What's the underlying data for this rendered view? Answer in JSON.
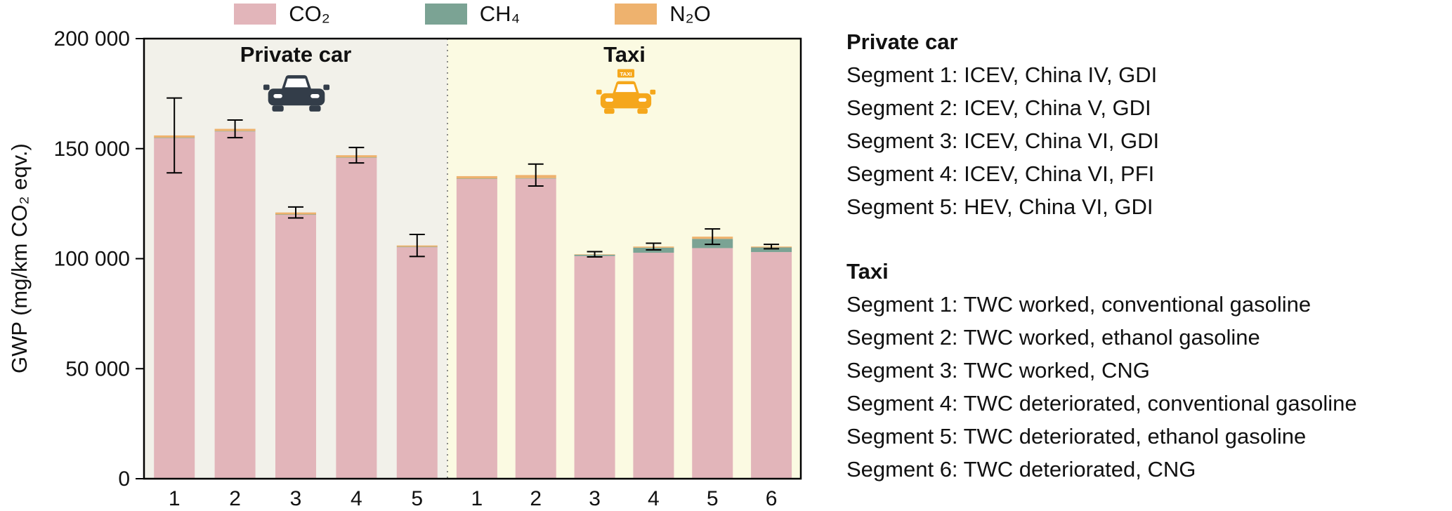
{
  "colors": {
    "co2": "#e2b5ba",
    "ch4": "#7ba394",
    "n2o": "#eeb26e",
    "private_bg": "#f2f1ea",
    "taxi_bg": "#fbfae2",
    "car_icon": "#333d49",
    "taxi_icon": "#f5a71c",
    "axis": "#000000"
  },
  "legend": {
    "items": [
      {
        "label": "CO₂",
        "key": "co2",
        "color": "#e2b5ba"
      },
      {
        "label": "CH₄",
        "key": "ch4",
        "color": "#7ba394"
      },
      {
        "label": "N₂O",
        "key": "n2o",
        "color": "#eeb26e"
      }
    ]
  },
  "chart_data": {
    "type": "bar",
    "stacked": true,
    "title": "",
    "ylabel": "GWP (mg/km CO₂ eqv.)",
    "ylim": [
      0,
      200000
    ],
    "yticks": [
      0,
      50000,
      100000,
      150000,
      200000
    ],
    "ytick_labels": [
      "0",
      "50 000",
      "100 000",
      "150 000",
      "200 000"
    ],
    "series_names": [
      "CO₂",
      "CH₄",
      "N₂O"
    ],
    "groups": [
      {
        "label": "Private car",
        "icon": "car-icon",
        "background": "#f2f1ea",
        "categories": [
          "1",
          "2",
          "3",
          "4",
          "5"
        ],
        "bars": [
          {
            "category": "1",
            "co2": 154800,
            "ch4": 200,
            "n2o": 1000,
            "total": 156000,
            "error": 17000
          },
          {
            "category": "2",
            "co2": 157800,
            "ch4": 200,
            "n2o": 1000,
            "total": 159000,
            "error": 4000
          },
          {
            "category": "3",
            "co2": 119900,
            "ch4": 200,
            "n2o": 900,
            "total": 121000,
            "error": 2500
          },
          {
            "category": "4",
            "co2": 145800,
            "ch4": 200,
            "n2o": 1000,
            "total": 147000,
            "error": 3500
          },
          {
            "category": "5",
            "co2": 105200,
            "ch4": 200,
            "n2o": 600,
            "total": 106000,
            "error": 5000
          }
        ]
      },
      {
        "label": "Taxi",
        "icon": "taxi-icon",
        "background": "#fbfae2",
        "categories": [
          "1",
          "2",
          "3",
          "4",
          "5",
          "6"
        ],
        "bars": [
          {
            "category": "1",
            "co2": 136200,
            "ch4": 200,
            "n2o": 1100,
            "total": 137500,
            "error": 0
          },
          {
            "category": "2",
            "co2": 136400,
            "ch4": 200,
            "n2o": 1400,
            "total": 138000,
            "error": 5000
          },
          {
            "category": "3",
            "co2": 101200,
            "ch4": 600,
            "n2o": 200,
            "total": 102000,
            "error": 1200
          },
          {
            "category": "4",
            "co2": 102700,
            "ch4": 2300,
            "n2o": 500,
            "total": 105500,
            "error": 1500
          },
          {
            "category": "5",
            "co2": 104800,
            "ch4": 4200,
            "n2o": 1000,
            "total": 110000,
            "error": 3500
          },
          {
            "category": "6",
            "co2": 103000,
            "ch4": 2100,
            "n2o": 400,
            "total": 105500,
            "error": 1000
          }
        ]
      }
    ]
  },
  "panel": {
    "sections": [
      {
        "title": "Private car",
        "lines": [
          "Segment 1: ICEV, China IV, GDI",
          "Segment 2: ICEV, China V, GDI",
          "Segment 3: ICEV, China VI, GDI",
          "Segment 4: ICEV, China VI, PFI",
          "Segment 5: HEV, China VI, GDI"
        ]
      },
      {
        "title": "Taxi",
        "lines": [
          "Segment 1: TWC worked, conventional gasoline",
          "Segment 2: TWC worked, ethanol gasoline",
          "Segment 3: TWC worked, CNG",
          "Segment 4: TWC deteriorated, conventional gasoline",
          "Segment 5: TWC deteriorated, ethanol gasoline",
          "Segment 6: TWC deteriorated, CNG"
        ]
      }
    ]
  },
  "icons": {
    "taxi_sign_text": "TAXI"
  }
}
